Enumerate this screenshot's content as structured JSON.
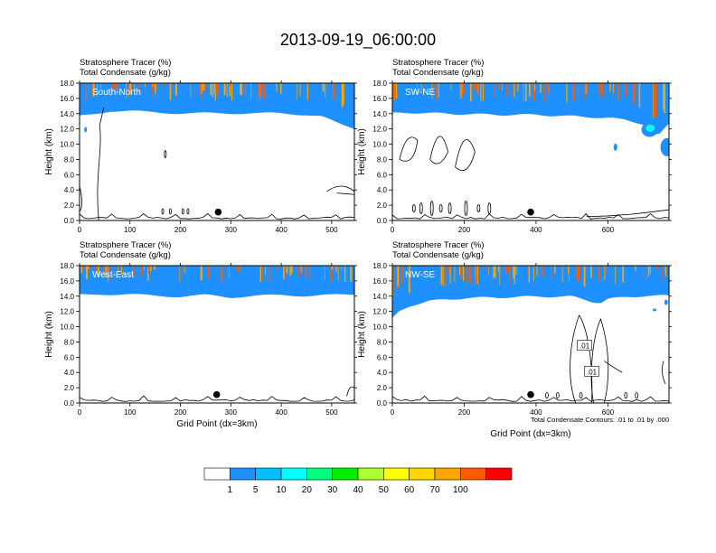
{
  "chart_data": {
    "type": "heatmap",
    "title": "2013-09-19_06:00:00",
    "panels": [
      {
        "id": "south-north",
        "region_label": "South-North",
        "titles": [
          "Stratosphere Tracer   (%)",
          "Total Condensate   (g/kg)"
        ],
        "ylabel": "Height (km)",
        "xlabel": "",
        "xlim": [
          0,
          545
        ],
        "ylim": [
          0,
          18
        ],
        "x_ticks": [
          "0",
          "100",
          "200",
          "300",
          "400",
          "500"
        ],
        "x_tick_values": [
          0,
          100,
          200,
          300,
          400,
          500
        ],
        "y_ticks": [
          "0.0",
          "2.0",
          "4.0",
          "6.0",
          "8.0",
          "10.0",
          "12.0",
          "14.0",
          "16.0",
          "18.0"
        ],
        "y_tick_values": [
          0,
          2,
          4,
          6,
          8,
          10,
          12,
          14,
          16,
          18
        ],
        "marker": [
          275,
          1.1
        ],
        "tropopause": [
          [
            0,
            13.9
          ],
          [
            30,
            14.2
          ],
          [
            60,
            14.6
          ],
          [
            100,
            14.6
          ],
          [
            150,
            14.4
          ],
          [
            200,
            14.3
          ],
          [
            250,
            14.3
          ],
          [
            300,
            14.3
          ],
          [
            350,
            14.3
          ],
          [
            400,
            14.3
          ],
          [
            450,
            14.1
          ],
          [
            480,
            13.9
          ],
          [
            500,
            13.3
          ],
          [
            520,
            12.8
          ],
          [
            545,
            12.3
          ]
        ],
        "note": ""
      },
      {
        "id": "sw-ne",
        "region_label": "SW-NE",
        "titles": [
          "Stratosphere Tracer   (%)",
          "Total Condensate   (g/kg)"
        ],
        "ylabel": "Height (km)",
        "xlabel": "",
        "xlim": [
          0,
          770
        ],
        "ylim": [
          0,
          18
        ],
        "x_ticks": [
          "0",
          "200",
          "400",
          "600"
        ],
        "x_tick_values": [
          0,
          200,
          400,
          600
        ],
        "y_ticks": [
          "0.0",
          "2.0",
          "4.0",
          "6.0",
          "8.0",
          "10.0",
          "12.0",
          "14.0",
          "16.0",
          "18.0"
        ],
        "y_tick_values": [
          0,
          2,
          4,
          6,
          8,
          10,
          12,
          14,
          16,
          18
        ],
        "marker": [
          385,
          1.1
        ],
        "tropopause": [
          [
            0,
            14.3
          ],
          [
            50,
            14.4
          ],
          [
            100,
            14.3
          ],
          [
            200,
            14.2
          ],
          [
            300,
            14.1
          ],
          [
            400,
            14.1
          ],
          [
            500,
            13.9
          ],
          [
            600,
            13.7
          ],
          [
            650,
            13.4
          ],
          [
            700,
            12.9
          ],
          [
            740,
            11.3
          ],
          [
            770,
            12.9
          ]
        ],
        "note": ""
      },
      {
        "id": "west-east",
        "region_label": "West-East",
        "titles": [
          "Stratosphere Tracer   (%)",
          "Total Condensate   (g/kg)"
        ],
        "ylabel": "Height (km)",
        "xlabel": "Grid Point (dx=3km)",
        "xlim": [
          0,
          545
        ],
        "ylim": [
          0,
          18
        ],
        "x_ticks": [
          "0",
          "100",
          "200",
          "300",
          "400",
          "500"
        ],
        "x_tick_values": [
          0,
          100,
          200,
          300,
          400,
          500
        ],
        "y_ticks": [
          "0.0",
          "2.0",
          "4.0",
          "6.0",
          "8.0",
          "10.0",
          "12.0",
          "14.0",
          "16.0",
          "18.0"
        ],
        "y_tick_values": [
          0,
          2,
          4,
          6,
          8,
          10,
          12,
          14,
          16,
          18
        ],
        "marker": [
          272,
          1.1
        ],
        "tropopause": [
          [
            0,
            14.4
          ],
          [
            50,
            14.5
          ],
          [
            100,
            14.5
          ],
          [
            150,
            14.3
          ],
          [
            200,
            14.2
          ],
          [
            250,
            14.4
          ],
          [
            300,
            14.1
          ],
          [
            350,
            14.3
          ],
          [
            400,
            14.4
          ],
          [
            450,
            14.3
          ],
          [
            500,
            14.4
          ],
          [
            545,
            14.5
          ]
        ],
        "note": ""
      },
      {
        "id": "nw-se",
        "region_label": "NW-SE",
        "titles": [
          "Stratosphere Tracer   (%)",
          "Total Condensate   (g/kg)"
        ],
        "ylabel": "Height (km)",
        "xlabel": "Grid Point (dx=3km)",
        "xlim": [
          0,
          770
        ],
        "ylim": [
          0,
          18
        ],
        "x_ticks": [
          "0",
          "200",
          "400",
          "600"
        ],
        "x_tick_values": [
          0,
          200,
          400,
          600
        ],
        "y_ticks": [
          "0.0",
          "2.0",
          "4.0",
          "6.0",
          "8.0",
          "10.0",
          "12.0",
          "14.0",
          "16.0",
          "18.0"
        ],
        "y_tick_values": [
          0,
          2,
          4,
          6,
          8,
          10,
          12,
          14,
          16,
          18
        ],
        "marker": [
          385,
          1.1
        ],
        "tropopause": [
          [
            0,
            11.3
          ],
          [
            20,
            12.3
          ],
          [
            50,
            13.0
          ],
          [
            100,
            13.6
          ],
          [
            200,
            14.0
          ],
          [
            300,
            14.1
          ],
          [
            400,
            14.2
          ],
          [
            500,
            14.2
          ],
          [
            560,
            13.5
          ],
          [
            580,
            13.4
          ],
          [
            600,
            13.9
          ],
          [
            700,
            14.3
          ],
          [
            770,
            14.3
          ]
        ],
        "contour_labels": [
          ".01",
          ".01"
        ],
        "note": "Total Condensate Contours: .01 to .01 by .000"
      }
    ],
    "colorbar": {
      "levels": [
        "1",
        "5",
        "10",
        "20",
        "30",
        "40",
        "50",
        "60",
        "70",
        "100"
      ],
      "colors": [
        "#ffffff",
        "#1e90ff",
        "#00bfff",
        "#00ffff",
        "#00ff7f",
        "#00ee00",
        "#adff2f",
        "#ffff00",
        "#ffd700",
        "#ffa500",
        "#ff5a00",
        "#ff0000"
      ]
    }
  }
}
